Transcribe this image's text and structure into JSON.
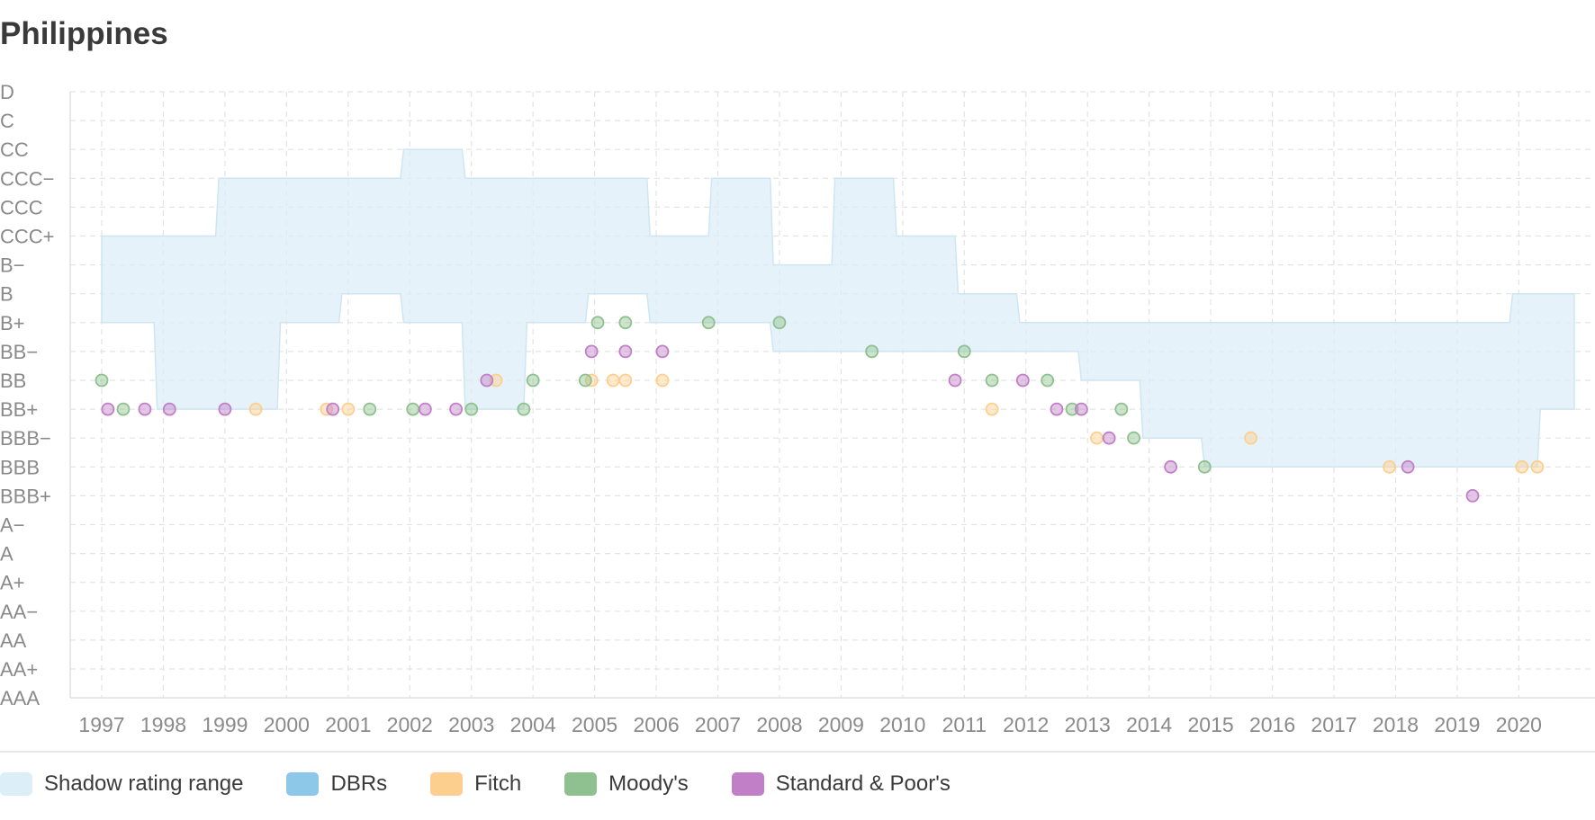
{
  "title": "Philippines",
  "chart_data": {
    "type": "scatter",
    "title": "Philippines",
    "xlabel": "",
    "ylabel": "",
    "grid": true,
    "legend_placement": "bottom-left",
    "y_categories": [
      "D",
      "C",
      "CC",
      "CCC−",
      "CCC",
      "CCC+",
      "B−",
      "B",
      "B+",
      "BB−",
      "BB",
      "BB+",
      "BBB−",
      "BBB",
      "BBB+",
      "A−",
      "A",
      "A+",
      "AA−",
      "AA",
      "AA+",
      "AAA"
    ],
    "x_ticks": [
      "1997",
      "1998",
      "1999",
      "2000",
      "2001",
      "2002",
      "2003",
      "2004",
      "2005",
      "2006",
      "2007",
      "2008",
      "2009",
      "2010",
      "2011",
      "2012",
      "2013",
      "2014",
      "2015",
      "2016",
      "2017",
      "2018",
      "2019",
      "2020"
    ],
    "x_range": [
      1996.5,
      2021.25
    ],
    "shadow_range": {
      "name": "Shadow rating range",
      "color": "#dceef7",
      "upper": [
        [
          "1997.0",
          "CCC+"
        ],
        [
          "1998.85",
          "CCC+"
        ],
        [
          "1998.9",
          "CCC−"
        ],
        [
          "2001.85",
          "CCC−"
        ],
        [
          "2001.9",
          "CC"
        ],
        [
          "2002.85",
          "CC"
        ],
        [
          "2002.9",
          "CCC−"
        ],
        [
          "2005.85",
          "CCC−"
        ],
        [
          "2005.9",
          "CCC+"
        ],
        [
          "2006.85",
          "CCC+"
        ],
        [
          "2006.9",
          "CCC−"
        ],
        [
          "2007.85",
          "CCC−"
        ],
        [
          "2007.9",
          "B−"
        ],
        [
          "2008.85",
          "B−"
        ],
        [
          "2008.9",
          "CCC−"
        ],
        [
          "2009.85",
          "CCC−"
        ],
        [
          "2009.9",
          "CCC+"
        ],
        [
          "2010.85",
          "CCC+"
        ],
        [
          "2010.9",
          "B"
        ],
        [
          "2011.85",
          "B"
        ],
        [
          "2011.9",
          "B+"
        ],
        [
          "2019.85",
          "B+"
        ],
        [
          "2019.9",
          "B"
        ],
        [
          "2020.9",
          "B"
        ]
      ],
      "lower": [
        [
          "1997.0",
          "B+"
        ],
        [
          "1997.85",
          "B+"
        ],
        [
          "1997.9",
          "BB+"
        ],
        [
          "1999.85",
          "BB+"
        ],
        [
          "1999.9",
          "B+"
        ],
        [
          "2000.85",
          "B+"
        ],
        [
          "2000.9",
          "B"
        ],
        [
          "2001.85",
          "B"
        ],
        [
          "2001.9",
          "B+"
        ],
        [
          "2002.85",
          "B+"
        ],
        [
          "2002.9",
          "BB+"
        ],
        [
          "2003.85",
          "BB+"
        ],
        [
          "2003.9",
          "B+"
        ],
        [
          "2004.85",
          "B+"
        ],
        [
          "2004.9",
          "B"
        ],
        [
          "2005.85",
          "B"
        ],
        [
          "2005.9",
          "B+"
        ],
        [
          "2007.85",
          "B+"
        ],
        [
          "2007.9",
          "BB−"
        ],
        [
          "2012.85",
          "BB−"
        ],
        [
          "2012.9",
          "BB"
        ],
        [
          "2013.85",
          "BB"
        ],
        [
          "2013.9",
          "BBB−"
        ],
        [
          "2014.85",
          "BBB−"
        ],
        [
          "2014.9",
          "BBB"
        ],
        [
          "2020.3",
          "BBB"
        ],
        [
          "2020.35",
          "BB+"
        ],
        [
          "2020.9",
          "BB+"
        ]
      ]
    },
    "series": [
      {
        "name": "Fitch",
        "color": "#fdcf8f",
        "points": [
          [
            "1999.5",
            "BB+"
          ],
          [
            "2000.65",
            "BB+"
          ],
          [
            "2001.0",
            "BB+"
          ],
          [
            "2003.4",
            "BB"
          ],
          [
            "2004.95",
            "BB"
          ],
          [
            "2005.3",
            "BB"
          ],
          [
            "2005.5",
            "BB"
          ],
          [
            "2006.1",
            "BB"
          ],
          [
            "2011.45",
            "BB+"
          ],
          [
            "2013.15",
            "BBB−"
          ],
          [
            "2015.65",
            "BBB−"
          ],
          [
            "2017.9",
            "BBB"
          ],
          [
            "2020.05",
            "BBB"
          ],
          [
            "2020.3",
            "BBB"
          ]
        ]
      },
      {
        "name": "Moody's",
        "color": "#8fc08f",
        "points": [
          [
            "1997.0",
            "BB"
          ],
          [
            "1997.35",
            "BB+"
          ],
          [
            "2001.35",
            "BB+"
          ],
          [
            "2002.05",
            "BB+"
          ],
          [
            "2003.0",
            "BB+"
          ],
          [
            "2003.85",
            "BB+"
          ],
          [
            "2004.0",
            "BB"
          ],
          [
            "2004.85",
            "BB"
          ],
          [
            "2005.05",
            "B+"
          ],
          [
            "2005.5",
            "B+"
          ],
          [
            "2006.85",
            "B+"
          ],
          [
            "2008.0",
            "B+"
          ],
          [
            "2009.5",
            "BB−"
          ],
          [
            "2011.0",
            "BB−"
          ],
          [
            "2011.45",
            "BB"
          ],
          [
            "2012.35",
            "BB"
          ],
          [
            "2012.75",
            "BB+"
          ],
          [
            "2013.55",
            "BB+"
          ],
          [
            "2013.75",
            "BBB−"
          ],
          [
            "2014.9",
            "BBB"
          ]
        ]
      },
      {
        "name": "Standard & Poor's",
        "color": "#c17fc7",
        "points": [
          [
            "1997.1",
            "BB+"
          ],
          [
            "1997.7",
            "BB+"
          ],
          [
            "1998.1",
            "BB+"
          ],
          [
            "1999.0",
            "BB+"
          ],
          [
            "2000.75",
            "BB+"
          ],
          [
            "2002.25",
            "BB+"
          ],
          [
            "2002.75",
            "BB+"
          ],
          [
            "2003.25",
            "BB"
          ],
          [
            "2004.95",
            "BB−"
          ],
          [
            "2005.5",
            "BB−"
          ],
          [
            "2006.1",
            "BB−"
          ],
          [
            "2010.85",
            "BB"
          ],
          [
            "2011.95",
            "BB"
          ],
          [
            "2012.5",
            "BB+"
          ],
          [
            "2012.9",
            "BB+"
          ],
          [
            "2013.35",
            "BBB−"
          ],
          [
            "2014.35",
            "BBB"
          ],
          [
            "2018.2",
            "BBB"
          ],
          [
            "2019.25",
            "BBB+"
          ]
        ]
      }
    ],
    "legend": [
      {
        "label": "Shadow rating range",
        "color": "#dceef7"
      },
      {
        "label": "DBRs",
        "color": "#8dc8e8"
      },
      {
        "label": "Fitch",
        "color": "#fdcf8f"
      },
      {
        "label": "Moody's",
        "color": "#8fc08f"
      },
      {
        "label": "Standard & Poor's",
        "color": "#c17fc7"
      }
    ],
    "colors": {
      "grid": "#e3e3e3",
      "axis": "#e0e0e0",
      "tick_text": "#8a8a8a",
      "shadow_stroke": "#cfe6f2"
    }
  }
}
